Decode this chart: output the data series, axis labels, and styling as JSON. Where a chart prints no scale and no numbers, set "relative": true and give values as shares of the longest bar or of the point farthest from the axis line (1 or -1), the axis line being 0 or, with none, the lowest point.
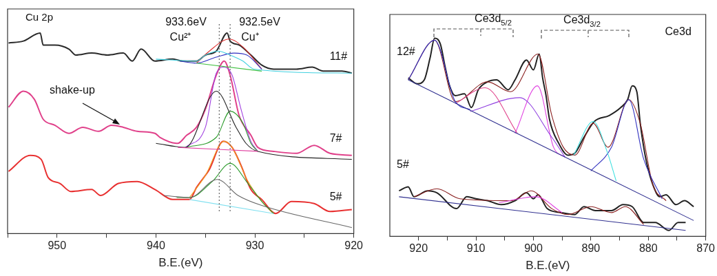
{
  "chart_data": [
    {
      "type": "line",
      "title": "Cu 2p",
      "xlabel": "B.E.(eV)",
      "relative": true,
      "xlim": [
        955,
        920
      ],
      "xticks": [
        {
          "value": 955,
          "label": null
        },
        950,
        {
          "value": 945,
          "label": null
        },
        940,
        {
          "value": 935,
          "label": null
        },
        930,
        {
          "value": 925,
          "label": null
        },
        920
      ],
      "series": [
        {
          "color": "#40d0e0",
          "x": [
            940.0,
            935.9,
            935.0,
            933.7,
            932.5,
            931.2,
            930.1,
            920.2
          ],
          "values": [
            0.87,
            0.86,
            0.89,
            0.91,
            0.89,
            0.86,
            0.82,
            0.8
          ]
        },
        {
          "color": "#40c040",
          "x": [
            935.9,
            929.3
          ],
          "values": [
            0.85,
            0.81
          ]
        },
        {
          "color": "#3030c0",
          "x": [
            937.6,
            935.9,
            933.9,
            932.1,
            930.8,
            929.3
          ],
          "values": [
            0.86,
            0.85,
            0.88,
            0.9,
            0.89,
            0.82
          ]
        },
        {
          "color": "#e03030",
          "x": [
            935.9,
            934.6,
            932.6,
            931.2,
            929.3
          ],
          "values": [
            0.85,
            0.91,
            0.97,
            0.93,
            0.82
          ]
        },
        {
          "name": "11#",
          "color": "#2a2a2a",
          "x": [
            954.9,
            953.4,
            951.7,
            951.4,
            950.2,
            948.8,
            948.1,
            946.5,
            944.9,
            943.3,
            942.4,
            941.5,
            940.1,
            938.3,
            937.3,
            935.9,
            935.0,
            933.9,
            932.8,
            932.5,
            931.6,
            930.4,
            929.3,
            928.1,
            925.8,
            924.2,
            923.1,
            921.2,
            920.2
          ],
          "values": [
            0.95,
            0.96,
            1.0,
            0.94,
            0.94,
            0.92,
            0.89,
            0.9,
            0.89,
            0.9,
            0.86,
            0.92,
            0.86,
            0.87,
            0.86,
            0.86,
            0.89,
            0.91,
            1.0,
            0.96,
            0.94,
            0.89,
            0.84,
            0.82,
            0.82,
            0.83,
            0.81,
            0.81,
            0.8
          ]
        },
        {
          "color": "#e040a0",
          "x": [
            937.8,
            929.7
          ],
          "values": [
            0.43,
            0.41
          ]
        },
        {
          "color": "#222222",
          "x": [
            940.0,
            937.0,
            933.9,
            931.9,
            930.9,
            929.7,
            920.2
          ],
          "values": [
            0.45,
            0.43,
            0.71,
            0.53,
            0.45,
            0.41,
            0.37
          ]
        },
        {
          "color": "#2a9a2a",
          "x": [
            937.0,
            933.9,
            932.5,
            931.2,
            930.4,
            929.7
          ],
          "values": [
            0.43,
            0.48,
            0.61,
            0.55,
            0.45,
            0.41
          ]
        },
        {
          "color": "#a040e0",
          "x": [
            937.0,
            935.0,
            933.9,
            933.1,
            932.3,
            931.4,
            930.4,
            929.7
          ],
          "values": [
            0.43,
            0.53,
            0.8,
            0.83,
            0.79,
            0.62,
            0.46,
            0.41
          ]
        },
        {
          "name": "7#",
          "color": "#e0408a",
          "x": [
            954.9,
            953.4,
            952.3,
            951.4,
            950.2,
            948.8,
            947.4,
            945.8,
            944.5,
            943.3,
            941.9,
            940.1,
            939.6,
            937.8,
            936.9,
            935.9,
            935.0,
            933.9,
            933.1,
            932.5,
            931.6,
            930.4,
            929.7,
            928.1,
            925.8,
            924.0,
            922.4,
            920.2
          ],
          "values": [
            0.63,
            0.71,
            0.67,
            0.57,
            0.54,
            0.5,
            0.53,
            0.51,
            0.54,
            0.53,
            0.51,
            0.5,
            0.48,
            0.45,
            0.49,
            0.53,
            0.62,
            0.79,
            0.86,
            0.79,
            0.59,
            0.49,
            0.43,
            0.41,
            0.4,
            0.44,
            0.4,
            0.39
          ]
        },
        {
          "color": "#80e0f0",
          "x": [
            936.6,
            928.1
          ],
          "values": [
            0.17,
            0.1
          ]
        },
        {
          "color": "#666666",
          "x": [
            939.2,
            936.6,
            933.8,
            931.7,
            929.3,
            920.2
          ],
          "values": [
            0.19,
            0.18,
            0.27,
            0.19,
            0.14,
            0.03
          ]
        },
        {
          "color": "#2a9a2a",
          "x": [
            937.9,
            936.6,
            934.3,
            932.5,
            930.7,
            929.3,
            928.1
          ],
          "values": [
            0.18,
            0.18,
            0.26,
            0.35,
            0.25,
            0.16,
            0.1
          ]
        },
        {
          "color": "#f0a020",
          "x": [
            936.6,
            935.0,
            933.1,
            932.3,
            930.8,
            929.3,
            928.1
          ],
          "values": [
            0.18,
            0.29,
            0.46,
            0.43,
            0.27,
            0.16,
            0.1
          ]
        },
        {
          "name": "5#",
          "color": "#e83030",
          "x": [
            954.9,
            952.7,
            951.6,
            950.9,
            949.7,
            948.6,
            946.5,
            945.6,
            943.8,
            941.9,
            940.1,
            938.3,
            936.6,
            935.9,
            934.6,
            933.2,
            932.3,
            931.4,
            930.4,
            929.3,
            927.9,
            926.3,
            924.0,
            922.4,
            920.2
          ],
          "values": [
            0.31,
            0.39,
            0.37,
            0.28,
            0.25,
            0.21,
            0.22,
            0.19,
            0.25,
            0.26,
            0.22,
            0.17,
            0.17,
            0.23,
            0.32,
            0.46,
            0.43,
            0.34,
            0.22,
            0.17,
            0.1,
            0.16,
            0.15,
            0.11,
            0.12
          ]
        }
      ],
      "ref_lines": [
        {
          "axis": "x",
          "value": 933.6,
          "color": "#666666",
          "line_style": "dotted"
        },
        {
          "axis": "x",
          "value": 932.5,
          "color": "#666666",
          "line_style": "dotted"
        }
      ],
      "annotations": [
        "933.6eV",
        "Cu²⁺",
        "932.5eV",
        "Cu⁺",
        "shake-up"
      ]
    },
    {
      "type": "line",
      "title": "Ce3d",
      "xlabel": "B.E.(eV)",
      "relative": true,
      "xlim": [
        925,
        870
      ],
      "xticks": [
        920,
        {
          "value": 915,
          "label": null
        },
        910,
        {
          "value": 905,
          "label": null
        },
        900,
        {
          "value": 895,
          "label": null
        },
        890,
        {
          "value": 885,
          "label": null
        },
        880,
        {
          "value": 875,
          "label": null
        },
        870
      ],
      "series": [
        {
          "color": "#303090",
          "x": [
            921.8,
            872.1
          ],
          "values": [
            0.79,
            0.08
          ]
        },
        {
          "color": "#3030c0",
          "x": [
            921.8,
            917.2,
            913.6,
            911.0
          ],
          "values": [
            0.79,
            0.99,
            0.68,
            0.64
          ]
        },
        {
          "color": "#e0408a",
          "x": [
            913.6,
            908.4,
            902.8
          ],
          "values": [
            0.67,
            0.75,
            0.52
          ]
        },
        {
          "color": "#9040e0",
          "x": [
            911.0,
            902.4,
            896.8,
            894.5
          ],
          "values": [
            0.63,
            0.7,
            0.5,
            0.4
          ]
        },
        {
          "color": "#e040e0",
          "x": [
            903.2,
            899.3,
            896.5,
            894.5
          ],
          "values": [
            0.52,
            0.76,
            0.45,
            0.4
          ]
        },
        {
          "color": "#40e0e0",
          "x": [
            893.0,
            889.6,
            887.2,
            885.6
          ],
          "values": [
            0.41,
            0.58,
            0.43,
            0.28
          ]
        },
        {
          "color": "#3030c0",
          "x": [
            890.0,
            886.4,
            883.4,
            880.8,
            877.6
          ],
          "values": [
            0.33,
            0.45,
            0.69,
            0.39,
            0.19
          ]
        },
        {
          "color": "#8b2020",
          "x": [
            921.8,
            917.2,
            913.6,
            908.0,
            904.0,
            899.2,
            896.8,
            894.8,
            892.8,
            889.6,
            887.0,
            883.4,
            881.4,
            879.2,
            876.9
          ],
          "values": [
            0.79,
            0.99,
            0.68,
            0.78,
            0.73,
            0.92,
            0.61,
            0.45,
            0.41,
            0.57,
            0.45,
            0.69,
            0.57,
            0.26,
            0.18
          ]
        },
        {
          "name": "12#",
          "color": "#222222",
          "x": [
            921.8,
            920.2,
            919.0,
            918.0,
            917.2,
            916.2,
            915.4,
            914.6,
            913.6,
            912.0,
            910.8,
            909.6,
            908.0,
            906.4,
            904.4,
            903.2,
            901.2,
            900.0,
            899.0,
            898.4,
            897.8,
            897.2,
            895.6,
            894.0,
            892.8,
            891.2,
            889.4,
            886.8,
            884.8,
            883.6,
            882.8,
            882.0,
            881.4,
            880.8,
            880.2,
            879.2,
            878.0,
            876.9,
            875.2,
            873.7,
            872.1
          ],
          "values": [
            0.8,
            0.77,
            0.79,
            0.9,
            1.0,
            0.97,
            0.86,
            0.76,
            0.71,
            0.72,
            0.65,
            0.74,
            0.78,
            0.79,
            0.74,
            0.79,
            0.89,
            0.84,
            0.92,
            0.8,
            0.71,
            0.59,
            0.47,
            0.41,
            0.42,
            0.5,
            0.58,
            0.61,
            0.65,
            0.69,
            0.76,
            0.73,
            0.57,
            0.45,
            0.36,
            0.26,
            0.2,
            0.21,
            0.16,
            0.18,
            0.15
          ]
        },
        {
          "color": "#303090",
          "x": [
            923.4,
            873.5
          ],
          "values": [
            0.2,
            0.03
          ]
        },
        {
          "color": "#e040e0",
          "x": [
            906.0,
            899.6,
            895.0
          ],
          "values": [
            0.17,
            0.2,
            0.12
          ]
        },
        {
          "color": "#8b2020",
          "x": [
            920.8,
            916.8,
            912.8,
            903.8,
            900.4,
            896.8,
            894.0,
            890.0,
            886.4,
            884.0,
            880.8
          ],
          "values": [
            0.2,
            0.24,
            0.19,
            0.18,
            0.23,
            0.14,
            0.11,
            0.15,
            0.12,
            0.15,
            0.06
          ]
        },
        {
          "name": "5#",
          "color": "#222222",
          "x": [
            923.4,
            921.8,
            920.8,
            918.4,
            916.8,
            913.4,
            911.6,
            910.0,
            908.0,
            905.6,
            903.2,
            901.2,
            900.0,
            899.2,
            897.6,
            895.2,
            892.8,
            891.2,
            889.2,
            886.4,
            884.4,
            882.8,
            880.8,
            878.8,
            876.4,
            874.8,
            873.5
          ],
          "values": [
            0.23,
            0.25,
            0.2,
            0.23,
            0.22,
            0.14,
            0.2,
            0.19,
            0.18,
            0.16,
            0.18,
            0.22,
            0.19,
            0.21,
            0.14,
            0.12,
            0.11,
            0.15,
            0.13,
            0.13,
            0.16,
            0.15,
            0.07,
            0.07,
            0.03,
            0.07,
            0.07
          ]
        }
      ],
      "annotations": [
        "Ce3d$_{5/2}$",
        "Ce3d$_{3/2}$"
      ]
    }
  ]
}
